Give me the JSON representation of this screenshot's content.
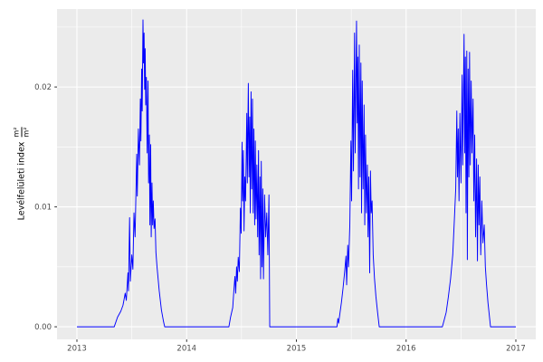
{
  "figure": {
    "background": "#FFFFFF",
    "panel_background": "#EBEBEB",
    "grid_color": "#FFFFFF",
    "axis_text_color": "#4D4D4D",
    "tick_mark_color": "#333333",
    "series_color": "#0000FF"
  },
  "y_axis": {
    "title": "Levélfelületi index",
    "unit_numerator": "m²",
    "unit_denominator": "m²",
    "tick_labels": [
      "0.00",
      "0.01",
      "0.02"
    ]
  },
  "x_axis": {
    "tick_labels": [
      "2013",
      "2014",
      "2015",
      "2016",
      "2017"
    ]
  },
  "chart_data": {
    "type": "line",
    "title": "",
    "xlabel": "",
    "ylabel": "Levélfelületi index m²/m²",
    "grid": true,
    "legend": "none",
    "xlim": [
      2012.8186,
      2017.1814
    ],
    "ylim": [
      -0.00105,
      0.0265
    ],
    "x_ticks": [
      2013,
      2014,
      2015,
      2016,
      2017
    ],
    "x_tick_labels": [
      "2013",
      "2014",
      "2015",
      "2016",
      "2017"
    ],
    "x_minor": [
      2013.5,
      2014.5,
      2015.5,
      2016.5
    ],
    "y_ticks": [
      0.0,
      0.01,
      0.02
    ],
    "y_tick_labels": [
      "0.00",
      "0.01",
      "0.02"
    ],
    "y_minor": [
      0.005,
      0.015,
      0.025
    ],
    "series": [
      {
        "name": "Levélfelületi index (m²/m²)",
        "color": "#0000FF",
        "points": [
          [
            2013.0,
            0
          ],
          [
            2013.34,
            0
          ],
          [
            2013.355,
            0.0004
          ],
          [
            2013.37,
            0.0008
          ],
          [
            2013.4,
            0.0013
          ],
          [
            2013.42,
            0.0018
          ],
          [
            2013.44,
            0.0028
          ],
          [
            2013.45,
            0.0022
          ],
          [
            2013.465,
            0.0045
          ],
          [
            2013.47,
            0.003
          ],
          [
            2013.48,
            0.0091
          ],
          [
            2013.487,
            0.0038
          ],
          [
            2013.5,
            0.006
          ],
          [
            2013.51,
            0.0048
          ],
          [
            2013.52,
            0.0095
          ],
          [
            2013.53,
            0.0075
          ],
          [
            2013.545,
            0.0144
          ],
          [
            2013.55,
            0.0109
          ],
          [
            2013.56,
            0.0165
          ],
          [
            2013.57,
            0.0135
          ],
          [
            2013.578,
            0.019
          ],
          [
            2013.583,
            0.0155
          ],
          [
            2013.59,
            0.0215
          ],
          [
            2013.595,
            0.018
          ],
          [
            2013.602,
            0.0256
          ],
          [
            2013.607,
            0.022
          ],
          [
            2013.612,
            0.0245
          ],
          [
            2013.617,
            0.0198
          ],
          [
            2013.622,
            0.0232
          ],
          [
            2013.627,
            0.0185
          ],
          [
            2013.633,
            0.0208
          ],
          [
            2013.64,
            0.0145
          ],
          [
            2013.648,
            0.0205
          ],
          [
            2013.653,
            0.012
          ],
          [
            2013.66,
            0.016
          ],
          [
            2013.665,
            0.0085
          ],
          [
            2013.672,
            0.0152
          ],
          [
            2013.677,
            0.0075
          ],
          [
            2013.684,
            0.012
          ],
          [
            2013.69,
            0.0085
          ],
          [
            2013.696,
            0.0105
          ],
          [
            2013.703,
            0.0082
          ],
          [
            2013.712,
            0.009
          ],
          [
            2013.72,
            0.0062
          ],
          [
            2013.73,
            0.005
          ],
          [
            2013.75,
            0.003
          ],
          [
            2013.77,
            0.0014
          ],
          [
            2013.79,
            0.0004
          ],
          [
            2013.8,
            0
          ],
          [
            2014.385,
            0
          ],
          [
            2014.4,
            0.0008
          ],
          [
            2014.42,
            0.0016
          ],
          [
            2014.43,
            0.003
          ],
          [
            2014.44,
            0.0042
          ],
          [
            2014.447,
            0.0028
          ],
          [
            2014.455,
            0.005
          ],
          [
            2014.462,
            0.0038
          ],
          [
            2014.47,
            0.0058
          ],
          [
            2014.48,
            0.0046
          ],
          [
            2014.49,
            0.0099
          ],
          [
            2014.497,
            0.0078
          ],
          [
            2014.505,
            0.0154
          ],
          [
            2014.51,
            0.0105
          ],
          [
            2014.517,
            0.0147
          ],
          [
            2014.523,
            0.008
          ],
          [
            2014.53,
            0.0125
          ],
          [
            2014.537,
            0.0105
          ],
          [
            2014.548,
            0.0178
          ],
          [
            2014.553,
            0.012
          ],
          [
            2014.562,
            0.0203
          ],
          [
            2014.568,
            0.0125
          ],
          [
            2014.575,
            0.0175
          ],
          [
            2014.58,
            0.0095
          ],
          [
            2014.587,
            0.0196
          ],
          [
            2014.593,
            0.0115
          ],
          [
            2014.6,
            0.019
          ],
          [
            2014.606,
            0.0095
          ],
          [
            2014.613,
            0.0165
          ],
          [
            2014.62,
            0.0085
          ],
          [
            2014.626,
            0.0155
          ],
          [
            2014.632,
            0.009
          ],
          [
            2014.64,
            0.0135
          ],
          [
            2014.647,
            0.0075
          ],
          [
            2014.655,
            0.0147
          ],
          [
            2014.66,
            0.006
          ],
          [
            2014.668,
            0.0125
          ],
          [
            2014.674,
            0.004
          ],
          [
            2014.68,
            0.0138
          ],
          [
            2014.687,
            0.005
          ],
          [
            2014.694,
            0.0115
          ],
          [
            2014.7,
            0.004
          ],
          [
            2014.71,
            0.011
          ],
          [
            2014.72,
            0.0075
          ],
          [
            2014.73,
            0.0095
          ],
          [
            2014.74,
            0.006
          ],
          [
            2014.75,
            0.011
          ],
          [
            2014.757,
            0
          ],
          [
            2015.37,
            0
          ],
          [
            2015.378,
            0.0007
          ],
          [
            2015.385,
            0.0003
          ],
          [
            2015.395,
            0.001
          ],
          [
            2015.41,
            0.002
          ],
          [
            2015.425,
            0.0032
          ],
          [
            2015.44,
            0.0046
          ],
          [
            2015.452,
            0.0059
          ],
          [
            2015.458,
            0.0035
          ],
          [
            2015.468,
            0.0068
          ],
          [
            2015.475,
            0.005
          ],
          [
            2015.487,
            0.0085
          ],
          [
            2015.497,
            0.0155
          ],
          [
            2015.503,
            0.0105
          ],
          [
            2015.513,
            0.0214
          ],
          [
            2015.52,
            0.013
          ],
          [
            2015.53,
            0.0245
          ],
          [
            2015.536,
            0.0145
          ],
          [
            2015.548,
            0.0255
          ],
          [
            2015.554,
            0.017
          ],
          [
            2015.56,
            0.0225
          ],
          [
            2015.566,
            0.0115
          ],
          [
            2015.573,
            0.0235
          ],
          [
            2015.58,
            0.0125
          ],
          [
            2015.588,
            0.022
          ],
          [
            2015.594,
            0.0095
          ],
          [
            2015.6,
            0.0205
          ],
          [
            2015.608,
            0.0115
          ],
          [
            2015.617,
            0.0185
          ],
          [
            2015.623,
            0.0085
          ],
          [
            2015.63,
            0.016
          ],
          [
            2015.638,
            0.0095
          ],
          [
            2015.647,
            0.0135
          ],
          [
            2015.653,
            0.0075
          ],
          [
            2015.66,
            0.0125
          ],
          [
            2015.668,
            0.0045
          ],
          [
            2015.675,
            0.013
          ],
          [
            2015.682,
            0.0095
          ],
          [
            2015.69,
            0.0105
          ],
          [
            2015.7,
            0.006
          ],
          [
            2015.712,
            0.004
          ],
          [
            2015.725,
            0.0025
          ],
          [
            2015.74,
            0.0012
          ],
          [
            2015.755,
            0
          ],
          [
            2016.33,
            0
          ],
          [
            2016.345,
            0.0005
          ],
          [
            2016.365,
            0.0012
          ],
          [
            2016.385,
            0.0025
          ],
          [
            2016.405,
            0.004
          ],
          [
            2016.425,
            0.006
          ],
          [
            2016.44,
            0.009
          ],
          [
            2016.452,
            0.0115
          ],
          [
            2016.462,
            0.018
          ],
          [
            2016.468,
            0.0125
          ],
          [
            2016.475,
            0.0165
          ],
          [
            2016.482,
            0.0105
          ],
          [
            2016.49,
            0.0178
          ],
          [
            2016.5,
            0.012
          ],
          [
            2016.51,
            0.021
          ],
          [
            2016.516,
            0.0135
          ],
          [
            2016.528,
            0.0244
          ],
          [
            2016.534,
            0.0145
          ],
          [
            2016.54,
            0.0225
          ],
          [
            2016.546,
            0.0095
          ],
          [
            2016.553,
            0.023
          ],
          [
            2016.558,
            0.0056
          ],
          [
            2016.565,
            0.0215
          ],
          [
            2016.572,
            0.0125
          ],
          [
            2016.578,
            0.0229
          ],
          [
            2016.585,
            0.0135
          ],
          [
            2016.593,
            0.0205
          ],
          [
            2016.6,
            0.0145
          ],
          [
            2016.61,
            0.019
          ],
          [
            2016.617,
            0.0105
          ],
          [
            2016.625,
            0.016
          ],
          [
            2016.633,
            0.0075
          ],
          [
            2016.642,
            0.014
          ],
          [
            2016.65,
            0.0055
          ],
          [
            2016.657,
            0.0135
          ],
          [
            2016.664,
            0.0085
          ],
          [
            2016.672,
            0.0125
          ],
          [
            2016.68,
            0.006
          ],
          [
            2016.69,
            0.0105
          ],
          [
            2016.7,
            0.007
          ],
          [
            2016.712,
            0.0085
          ],
          [
            2016.722,
            0.005
          ],
          [
            2016.733,
            0.0035
          ],
          [
            2016.746,
            0.002
          ],
          [
            2016.76,
            0.0008
          ],
          [
            2016.769,
            0
          ],
          [
            2017.0,
            0
          ]
        ]
      }
    ]
  }
}
